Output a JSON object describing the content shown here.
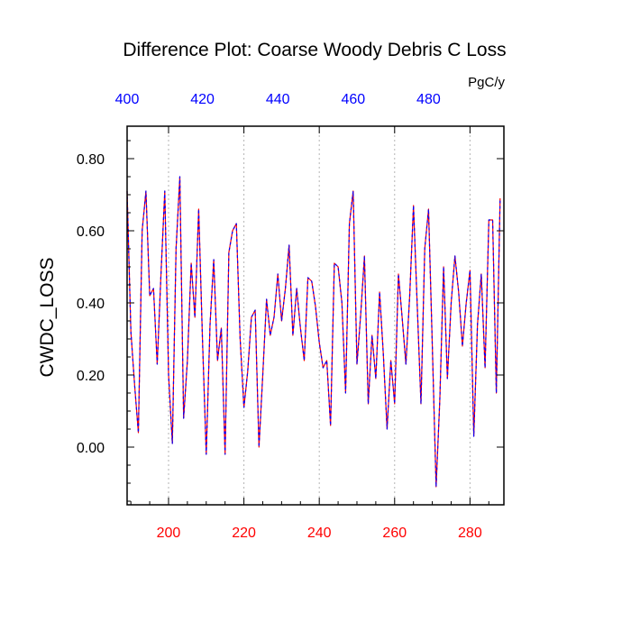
{
  "chart_data": {
    "type": "line",
    "title": "Difference Plot: Coarse Woody Debris C Loss",
    "units": "PgC/y",
    "ylabel": "CWDC_LOSS",
    "xlim": [
      189,
      289
    ],
    "ylim": [
      -0.16,
      0.89
    ],
    "x_ticks": [
      200,
      220,
      240,
      260,
      280
    ],
    "x_tick_color": "#ff0000",
    "top_xlim": [
      400,
      500
    ],
    "top_x_ticks": [
      400,
      420,
      440,
      460,
      480
    ],
    "top_x_tick_color": "#0000ff",
    "y_ticks": [
      0.0,
      0.2,
      0.4,
      0.6,
      0.8
    ],
    "y_tick_labels": [
      "0.00",
      "0.20",
      "0.40",
      "0.60",
      "0.80"
    ],
    "grid": "vertical-dotted",
    "series": [
      {
        "color": "#ff0000",
        "dash": "solid",
        "x": [
          189,
          190,
          191,
          192,
          193,
          194,
          195,
          196,
          197,
          198,
          199,
          200,
          201,
          202,
          203,
          204,
          205,
          206,
          207,
          208,
          209,
          210,
          211,
          212,
          213,
          214,
          215,
          216,
          217,
          218,
          219,
          220,
          221,
          222,
          223,
          224,
          225,
          226,
          227,
          228,
          229,
          230,
          231,
          232,
          233,
          234,
          235,
          236,
          237,
          238,
          239,
          240,
          241,
          242,
          243,
          244,
          245,
          246,
          247,
          248,
          249,
          250,
          251,
          252,
          253,
          254,
          255,
          256,
          257,
          258,
          259,
          260,
          261,
          262,
          263,
          264,
          265,
          266,
          267,
          268,
          269,
          270,
          271,
          272,
          273,
          274,
          275,
          276,
          277,
          278,
          279,
          280,
          281,
          282,
          283,
          284,
          285,
          286,
          287,
          288
        ],
        "values": [
          0.71,
          0.32,
          0.17,
          0.04,
          0.6,
          0.71,
          0.42,
          0.44,
          0.23,
          0.48,
          0.71,
          0.2,
          0.01,
          0.55,
          0.75,
          0.08,
          0.24,
          0.51,
          0.36,
          0.66,
          0.3,
          -0.02,
          0.34,
          0.52,
          0.24,
          0.33,
          -0.02,
          0.54,
          0.6,
          0.62,
          0.3,
          0.11,
          0.21,
          0.36,
          0.38,
          0.0,
          0.2,
          0.41,
          0.31,
          0.36,
          0.48,
          0.35,
          0.44,
          0.56,
          0.31,
          0.44,
          0.33,
          0.24,
          0.47,
          0.46,
          0.39,
          0.29,
          0.22,
          0.24,
          0.06,
          0.51,
          0.5,
          0.4,
          0.15,
          0.62,
          0.71,
          0.23,
          0.37,
          0.53,
          0.12,
          0.31,
          0.19,
          0.43,
          0.26,
          0.05,
          0.24,
          0.12,
          0.48,
          0.36,
          0.23,
          0.42,
          0.67,
          0.39,
          0.12,
          0.55,
          0.66,
          0.28,
          -0.11,
          0.13,
          0.5,
          0.19,
          0.4,
          0.53,
          0.43,
          0.28,
          0.4,
          0.49,
          0.03,
          0.34,
          0.48,
          0.22,
          0.63,
          0.63,
          0.15,
          0.69
        ]
      },
      {
        "color": "#0000ff",
        "dash": "dashed",
        "x": [
          189,
          190,
          191,
          192,
          193,
          194,
          195,
          196,
          197,
          198,
          199,
          200,
          201,
          202,
          203,
          204,
          205,
          206,
          207,
          208,
          209,
          210,
          211,
          212,
          213,
          214,
          215,
          216,
          217,
          218,
          219,
          220,
          221,
          222,
          223,
          224,
          225,
          226,
          227,
          228,
          229,
          230,
          231,
          232,
          233,
          234,
          235,
          236,
          237,
          238,
          239,
          240,
          241,
          242,
          243,
          244,
          245,
          246,
          247,
          248,
          249,
          250,
          251,
          252,
          253,
          254,
          255,
          256,
          257,
          258,
          259,
          260,
          261,
          262,
          263,
          264,
          265,
          266,
          267,
          268,
          269,
          270,
          271,
          272,
          273,
          274,
          275,
          276,
          277,
          278,
          279,
          280,
          281,
          282,
          283,
          284,
          285,
          286,
          287,
          288
        ],
        "values": [
          0.71,
          0.32,
          0.17,
          0.04,
          0.6,
          0.71,
          0.42,
          0.44,
          0.23,
          0.48,
          0.71,
          0.2,
          0.01,
          0.55,
          0.75,
          0.08,
          0.24,
          0.51,
          0.36,
          0.66,
          0.3,
          -0.02,
          0.34,
          0.52,
          0.24,
          0.33,
          -0.02,
          0.54,
          0.6,
          0.62,
          0.3,
          0.11,
          0.21,
          0.36,
          0.38,
          0.0,
          0.2,
          0.41,
          0.31,
          0.36,
          0.48,
          0.35,
          0.44,
          0.56,
          0.31,
          0.44,
          0.33,
          0.24,
          0.47,
          0.46,
          0.39,
          0.29,
          0.22,
          0.24,
          0.06,
          0.51,
          0.5,
          0.4,
          0.15,
          0.62,
          0.71,
          0.23,
          0.37,
          0.53,
          0.12,
          0.31,
          0.19,
          0.43,
          0.26,
          0.05,
          0.24,
          0.12,
          0.48,
          0.36,
          0.23,
          0.42,
          0.67,
          0.39,
          0.12,
          0.55,
          0.66,
          0.28,
          -0.11,
          0.13,
          0.5,
          0.19,
          0.4,
          0.53,
          0.43,
          0.28,
          0.4,
          0.49,
          0.03,
          0.34,
          0.48,
          0.22,
          0.63,
          0.63,
          0.15,
          0.69
        ]
      }
    ]
  }
}
